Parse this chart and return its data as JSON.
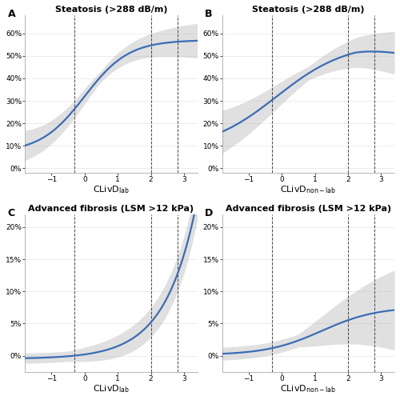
{
  "panels": [
    {
      "label": "A",
      "title": "Steatosis (>288 dB/m)",
      "xlabel_main": "CLivD",
      "xlabel_sub": "lab",
      "xlabel_sub_style": "normal",
      "xlim": [
        -1.8,
        3.4
      ],
      "ylim": [
        -0.02,
        0.68
      ],
      "yticks": [
        0.0,
        0.1,
        0.2,
        0.3,
        0.4,
        0.5,
        0.6
      ],
      "xticks": [
        -1,
        0,
        1,
        2,
        3
      ],
      "vlines": [
        -0.3,
        2.0,
        2.8
      ],
      "curve_type": "steatosis_lab"
    },
    {
      "label": "B",
      "title": "Steatosis (>288 dB/m)",
      "xlabel_main": "CLivD",
      "xlabel_sub": "non-lab",
      "xlabel_sub_style": "normal",
      "xlim": [
        -1.8,
        3.4
      ],
      "ylim": [
        -0.02,
        0.68
      ],
      "yticks": [
        0.0,
        0.1,
        0.2,
        0.3,
        0.4,
        0.5,
        0.6
      ],
      "xticks": [
        -1,
        0,
        1,
        2,
        3
      ],
      "vlines": [
        -0.3,
        2.0,
        2.8
      ],
      "curve_type": "steatosis_nonlab"
    },
    {
      "label": "C",
      "title": "Advanced fibrosis (LSM >12 kPa)",
      "xlabel_main": "CLivD",
      "xlabel_sub": "lab",
      "xlabel_sub_style": "normal",
      "xlim": [
        -1.8,
        3.4
      ],
      "ylim": [
        -0.025,
        0.22
      ],
      "yticks": [
        0.0,
        0.05,
        0.1,
        0.15,
        0.2
      ],
      "xticks": [
        -1,
        0,
        1,
        2,
        3
      ],
      "vlines": [
        -0.3,
        2.0,
        2.8
      ],
      "curve_type": "fibrosis_lab"
    },
    {
      "label": "D",
      "title": "Advanced fibrosis (LSM >12 kPa)",
      "xlabel_main": "CLivD",
      "xlabel_sub": "non-lab",
      "xlabel_sub_style": "normal",
      "xlim": [
        -1.8,
        3.4
      ],
      "ylim": [
        -0.025,
        0.22
      ],
      "yticks": [
        0.0,
        0.05,
        0.1,
        0.15,
        0.2
      ],
      "xticks": [
        -1,
        0,
        1,
        2,
        3
      ],
      "vlines": [
        -0.3,
        2.0,
        2.8
      ],
      "curve_type": "fibrosis_nonlab"
    }
  ],
  "line_color": "#3B6DB5",
  "ci_color": "#BBBBBB",
  "ci_alpha": 0.45,
  "line_width": 1.6,
  "background_color": "#FFFFFF",
  "label_fontsize": 8,
  "title_fontsize": 8,
  "tick_fontsize": 6.5,
  "panel_label_fontsize": 9
}
